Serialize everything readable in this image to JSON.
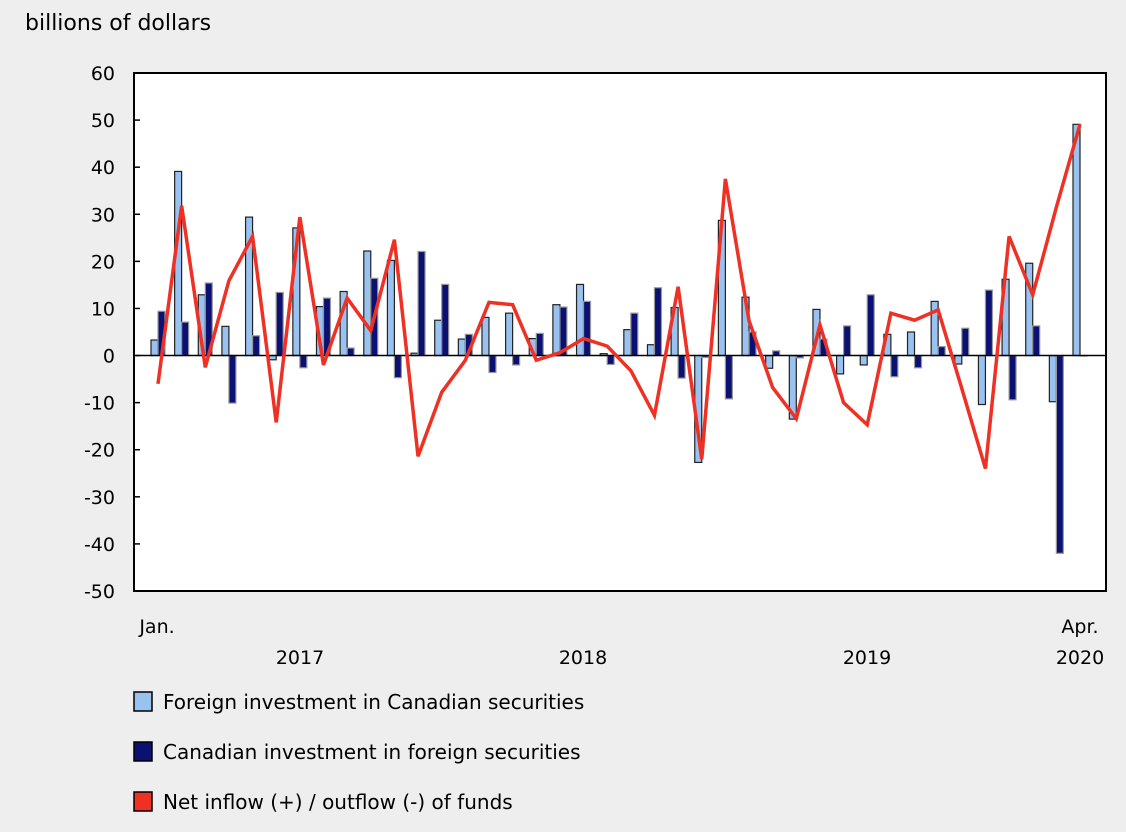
{
  "chart_data": {
    "type": "bar+line",
    "ylabel": "billions of dollars",
    "ylim": [
      -50,
      60
    ],
    "yticks": [
      60,
      50,
      40,
      30,
      20,
      10,
      0,
      -10,
      -20,
      -30,
      -40,
      -50
    ],
    "grid": false,
    "legend_position": "bottom",
    "x_start_label": "Jan.",
    "x_end_label": "Apr.",
    "year_labels": [
      "2017",
      "2018",
      "2019",
      "2020"
    ],
    "months": [
      "2017-01",
      "2017-02",
      "2017-03",
      "2017-04",
      "2017-05",
      "2017-06",
      "2017-07",
      "2017-08",
      "2017-09",
      "2017-10",
      "2017-11",
      "2017-12",
      "2018-01",
      "2018-02",
      "2018-03",
      "2018-04",
      "2018-05",
      "2018-06",
      "2018-07",
      "2018-08",
      "2018-09",
      "2018-10",
      "2018-11",
      "2018-12",
      "2019-01",
      "2019-02",
      "2019-03",
      "2019-04",
      "2019-05",
      "2019-06",
      "2019-07",
      "2019-08",
      "2019-09",
      "2019-10",
      "2019-11",
      "2019-12",
      "2020-01",
      "2020-02",
      "2020-03",
      "2020-04"
    ],
    "series": [
      {
        "name": "Foreign investment in Canadian securities",
        "type": "bar",
        "color": "#99c2f0",
        "values": [
          3.3,
          39.1,
          12.9,
          6.2,
          29.4,
          -0.9,
          27.1,
          10.4,
          13.6,
          22.2,
          20.2,
          0.5,
          7.5,
          3.5,
          8.1,
          9.0,
          3.6,
          10.8,
          15.1,
          0.4,
          5.5,
          2.3,
          10.2,
          -22.7,
          28.7,
          12.4,
          -2.7,
          -13.5,
          9.8,
          -3.9,
          -2.0,
          4.5,
          5.0,
          11.5,
          -1.8,
          -10.4,
          16.2,
          19.6,
          -9.8,
          49.1
        ]
      },
      {
        "name": "Canadian investment in foreign securities",
        "type": "bar",
        "color": "#0a1172",
        "values": [
          9.4,
          7.1,
          15.4,
          -10.1,
          4.2,
          13.4,
          -2.6,
          12.2,
          1.6,
          16.4,
          -4.7,
          22.1,
          15.1,
          4.5,
          -3.6,
          -2.0,
          4.7,
          10.3,
          11.5,
          -1.9,
          9.0,
          14.4,
          -4.8,
          -0.4,
          -9.2,
          5.0,
          1.0,
          -0.5,
          3.5,
          6.3,
          12.9,
          -4.5,
          -2.6,
          1.9,
          5.8,
          13.9,
          -9.4,
          6.3,
          -42.0,
          0.0
        ]
      },
      {
        "name": "Net inflow (+) / outflow (-) of funds",
        "type": "line",
        "color": "#ee3124",
        "values": [
          -6.0,
          31.8,
          -2.5,
          15.9,
          25.3,
          -14.2,
          29.4,
          -2.0,
          12.2,
          5.3,
          24.6,
          -21.4,
          -7.8,
          -1.0,
          11.3,
          10.8,
          -1.0,
          0.6,
          3.6,
          2.0,
          -3.2,
          -12.7,
          14.6,
          -22.0,
          37.5,
          7.4,
          -6.8,
          -13.4,
          6.5,
          -10.0,
          -14.7,
          9.0,
          7.5,
          9.7,
          -7.0,
          -24.0,
          25.3,
          12.9,
          31.5,
          49.1
        ]
      }
    ]
  }
}
